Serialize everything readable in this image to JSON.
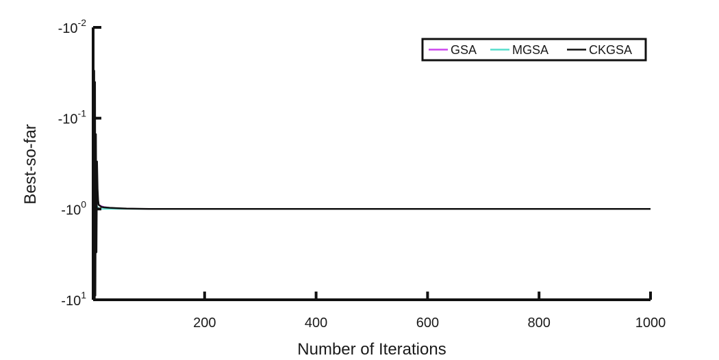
{
  "chart_data": {
    "type": "line",
    "title": "",
    "xlabel": "Number of Iterations",
    "ylabel": "Best-so-far",
    "xlim": [
      0,
      1000
    ],
    "ylim_log_abs": [
      0.01,
      10
    ],
    "y_scale": "negative-log",
    "x_ticks": [
      {
        "value": 200,
        "label": "200"
      },
      {
        "value": 400,
        "label": "400"
      },
      {
        "value": 600,
        "label": "600"
      },
      {
        "value": 800,
        "label": "800"
      },
      {
        "value": 1000,
        "label": "1000"
      }
    ],
    "y_ticks": [
      {
        "value": 0.01,
        "base": "-10",
        "exp": "-2"
      },
      {
        "value": 0.1,
        "base": "-10",
        "exp": "-1"
      },
      {
        "value": 1,
        "base": "-10",
        "exp": "0"
      },
      {
        "value": 10,
        "base": "-10",
        "exp": "1"
      }
    ],
    "grid": false,
    "legend_position": "top-right",
    "series": [
      {
        "name": "GSA",
        "color": "#cc44ee",
        "x": [
          1,
          2,
          3,
          4,
          5,
          6,
          8,
          10,
          15,
          20,
          30,
          45,
          60,
          80,
          100,
          150,
          200,
          300,
          500,
          1000
        ],
        "y": [
          8,
          0.3,
          6,
          0.6,
          3,
          0.8,
          0.85,
          0.9,
          0.93,
          0.95,
          0.97,
          0.98,
          0.99,
          0.995,
          1.0,
          1.0,
          1.0,
          1.0,
          1.0,
          1.0
        ]
      },
      {
        "name": "MGSA",
        "color": "#55ddcc",
        "x": [
          1,
          2,
          3,
          4,
          5,
          6,
          8,
          10,
          15,
          20,
          30,
          45,
          60,
          80,
          100,
          150,
          200,
          300,
          500,
          1000
        ],
        "y": [
          9,
          0.5,
          5,
          0.7,
          2,
          0.9,
          0.95,
          1.0,
          1.0,
          1.0,
          1.0,
          1.0,
          1.0,
          1.0,
          1.0,
          1.0,
          1.0,
          1.0,
          1.0,
          1.0
        ]
      },
      {
        "name": "CKGSA",
        "color": "#111111",
        "x": [
          1,
          2,
          3,
          3.5,
          4,
          5,
          6,
          7,
          8,
          9,
          10,
          12,
          15,
          20,
          30,
          45,
          60,
          100,
          200,
          500,
          1000
        ],
        "y": [
          10,
          0.03,
          10,
          0.04,
          9,
          0.15,
          3,
          0.3,
          0.6,
          0.8,
          0.9,
          0.92,
          0.95,
          0.96,
          0.97,
          0.98,
          0.99,
          1.0,
          1.0,
          1.0,
          1.0
        ]
      }
    ]
  }
}
